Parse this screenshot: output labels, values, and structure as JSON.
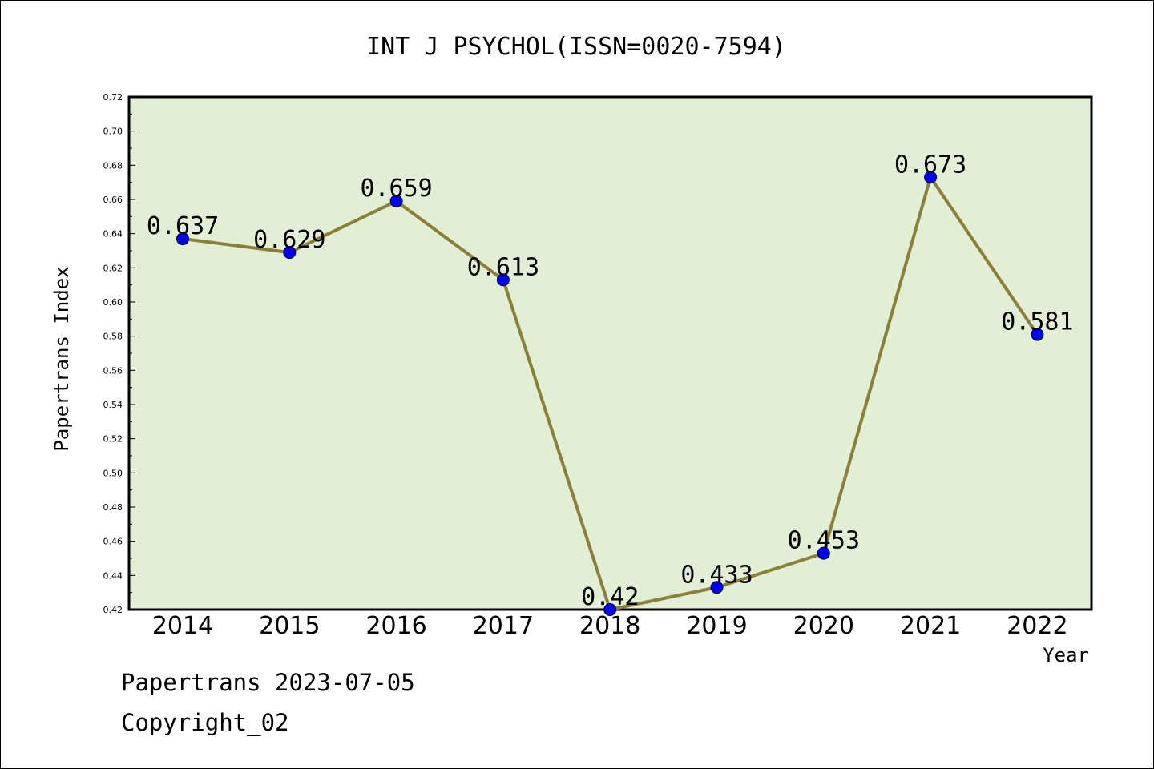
{
  "chart_data": {
    "type": "line",
    "title": "INT J PSYCHOL(ISSN=0020-7594)",
    "xlabel": "Year",
    "ylabel": "Papertrans Index",
    "x": [
      "2014",
      "2015",
      "2016",
      "2017",
      "2018",
      "2019",
      "2020",
      "2021",
      "2022"
    ],
    "values": [
      0.637,
      0.629,
      0.659,
      0.613,
      0.42,
      0.433,
      0.453,
      0.673,
      0.581
    ],
    "data_labels": [
      "0.637",
      "0.629",
      "0.659",
      "0.613",
      "0.42",
      "0.433",
      "0.453",
      "0.673",
      "0.581"
    ],
    "ylim": [
      0.42,
      0.72
    ],
    "yticks": [
      "0.42",
      "0.44",
      "0.46",
      "0.48",
      "0.50",
      "0.52",
      "0.54",
      "0.56",
      "0.58",
      "0.60",
      "0.62",
      "0.64",
      "0.66",
      "0.68",
      "0.70",
      "0.72"
    ],
    "grid": false,
    "legend": "none",
    "colors": {
      "plot_background": "#e2efd5",
      "line": "#8b8038",
      "marker": "#0000ff"
    }
  },
  "footer": {
    "line1": "Papertrans 2023-07-05",
    "line2": "Copyright_02"
  }
}
